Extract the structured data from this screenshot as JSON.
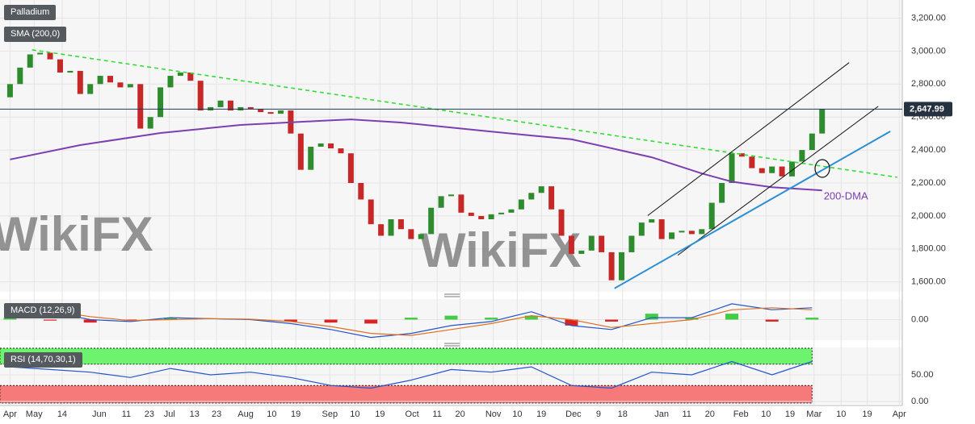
{
  "watermark": "WikiFX",
  "chart_data": [
    {
      "type": "candlestick",
      "title": "Palladium",
      "indicator": "SMA (200,0)",
      "annotation": "200-DMA",
      "up_color": "#2e8b2e",
      "down_color": "#c62828",
      "sma_color": "#7b3fb0",
      "xlim": [
        -1,
        89
      ],
      "xticks": [
        {
          "value": 0,
          "label": "Apr"
        },
        {
          "value": 2.4,
          "label": "May"
        },
        {
          "value": 5.2,
          "label": "14"
        },
        {
          "value": 8.9,
          "label": "Jun"
        },
        {
          "value": 11.6,
          "label": "11"
        },
        {
          "value": 13.9,
          "label": "23"
        },
        {
          "value": 15.9,
          "label": "Jul"
        },
        {
          "value": 18.4,
          "label": "13"
        },
        {
          "value": 20.6,
          "label": "23"
        },
        {
          "value": 23.5,
          "label": "Aug"
        },
        {
          "value": 26.1,
          "label": "10"
        },
        {
          "value": 28.5,
          "label": "19"
        },
        {
          "value": 31.9,
          "label": "Sep"
        },
        {
          "value": 34.4,
          "label": "10"
        },
        {
          "value": 36.9,
          "label": "19"
        },
        {
          "value": 40.1,
          "label": "Oct"
        },
        {
          "value": 42.6,
          "label": "11"
        },
        {
          "value": 44.9,
          "label": "20"
        },
        {
          "value": 48.2,
          "label": "Nov"
        },
        {
          "value": 50.6,
          "label": "10"
        },
        {
          "value": 53.0,
          "label": "19"
        },
        {
          "value": 56.2,
          "label": "Dec"
        },
        {
          "value": 58.7,
          "label": "9"
        },
        {
          "value": 61.1,
          "label": "18"
        },
        {
          "value": 65.0,
          "label": "Jan"
        },
        {
          "value": 67.5,
          "label": "11"
        },
        {
          "value": 69.8,
          "label": "20"
        },
        {
          "value": 72.9,
          "label": "Feb"
        },
        {
          "value": 75.4,
          "label": "10"
        },
        {
          "value": 77.8,
          "label": "19"
        },
        {
          "value": 80.2,
          "label": "Mar"
        },
        {
          "value": 82.9,
          "label": "10"
        },
        {
          "value": 85.5,
          "label": "19"
        },
        {
          "value": 88.7,
          "label": "Apr"
        }
      ],
      "ylim": [
        1540,
        3310
      ],
      "yticks": [
        {
          "value": 1600,
          "label": "1,600.00"
        },
        {
          "value": 1800,
          "label": "1,800.00"
        },
        {
          "value": 2000,
          "label": "2,000.00"
        },
        {
          "value": 2200,
          "label": "2,200.00"
        },
        {
          "value": 2400,
          "label": "2,400.00"
        },
        {
          "value": 2600,
          "label": "2,600.00"
        },
        {
          "value": 2800,
          "label": "2,800.00"
        },
        {
          "value": 3000,
          "label": "3,000.00"
        },
        {
          "value": 3200,
          "label": "3,200.00"
        }
      ],
      "last_price": {
        "value": 2647.99,
        "label": "2,647.99"
      },
      "open": [
        2720,
        2800,
        2900,
        2980,
        2990,
        2950,
        2870,
        2880,
        2740,
        2800,
        2850,
        2810,
        2780,
        2800,
        2530,
        2600,
        2780,
        2850,
        2870,
        2820,
        2640,
        2660,
        2700,
        2640,
        2660,
        2650,
        2630,
        2620,
        2640,
        2500,
        2280,
        2420,
        2440,
        2410,
        2380,
        2200,
        2100,
        1950,
        1880,
        1980,
        1920,
        1860,
        1890,
        2050,
        2120,
        2130,
        2020,
        2000,
        1980,
        2010,
        2020,
        2040,
        2100,
        2140,
        2180,
        2040,
        1880,
        1770,
        1790,
        1880,
        1780,
        1610,
        1780,
        1880,
        1960,
        1980,
        1860,
        1900,
        1910,
        1890,
        1920,
        2080,
        2200,
        2380,
        2360,
        2290,
        2260,
        2300,
        2240,
        2330,
        2400,
        2500
      ],
      "close": [
        2800,
        2900,
        2980,
        2990,
        2950,
        2870,
        2880,
        2740,
        2800,
        2850,
        2810,
        2780,
        2800,
        2530,
        2600,
        2780,
        2850,
        2870,
        2820,
        2640,
        2660,
        2700,
        2640,
        2660,
        2650,
        2630,
        2620,
        2640,
        2500,
        2280,
        2420,
        2440,
        2410,
        2380,
        2200,
        2100,
        1950,
        1880,
        1980,
        1920,
        1860,
        1890,
        2050,
        2120,
        2130,
        2020,
        2000,
        1980,
        2010,
        2020,
        2040,
        2100,
        2140,
        2180,
        2040,
        1880,
        1770,
        1790,
        1880,
        1780,
        1610,
        1780,
        1880,
        1960,
        1980,
        1860,
        1900,
        1910,
        1890,
        1920,
        2080,
        2200,
        2380,
        2360,
        2290,
        2260,
        2300,
        2240,
        2330,
        2400,
        2500,
        2647.99
      ],
      "sma": {
        "x": [
          0,
          7,
          15,
          23,
          31,
          34,
          39,
          47,
          52,
          56,
          64,
          69,
          72,
          76,
          81
        ],
        "values": [
          2343,
          2430,
          2503,
          2552,
          2577,
          2586,
          2567,
          2518,
          2488,
          2465,
          2356,
          2258,
          2208,
          2174,
          2155
        ]
      },
      "trendlines": [
        {
          "color": "#33dd33",
          "dashed": true,
          "x": [
            2.2,
            88.5
          ],
          "values": [
            3008,
            2235
          ]
        },
        {
          "color": "#111111",
          "dashed": false,
          "x": [
            63.6,
            83.7
          ],
          "values": [
            2002,
            2930
          ]
        },
        {
          "color": "#111111",
          "dashed": false,
          "x": [
            66.6,
            86.6
          ],
          "values": [
            1762,
            2665
          ]
        },
        {
          "color": "#2a8fd6",
          "dashed": false,
          "x": [
            60.3,
            87.8
          ],
          "values": [
            1561,
            2513
          ]
        }
      ]
    },
    {
      "type": "macd",
      "title": "MACD (12,26,9)",
      "ylim": [
        -100,
        100
      ],
      "yticks": [
        {
          "value": 0,
          "label": "0.00"
        }
      ],
      "x": [
        0,
        4,
        8,
        12,
        16,
        20,
        24,
        28,
        32,
        36,
        40,
        44,
        48,
        52,
        56,
        60,
        64,
        68,
        72,
        76,
        80
      ],
      "series": [
        {
          "name": "MACD",
          "color": "#2255cc",
          "values": [
            60,
            40,
            0,
            -10,
            10,
            5,
            0,
            -20,
            -50,
            -90,
            -70,
            -30,
            -10,
            40,
            -30,
            -50,
            10,
            10,
            80,
            50,
            60
          ]
        },
        {
          "name": "Signal",
          "color": "#e07020",
          "values": [
            50,
            45,
            15,
            -5,
            0,
            5,
            2,
            -10,
            -35,
            -70,
            -80,
            -50,
            -20,
            20,
            0,
            -40,
            -20,
            0,
            50,
            60,
            50
          ]
        }
      ],
      "histogram": {
        "up_color": "#44cc44",
        "down_color": "#dd2222",
        "values": [
          10,
          -5,
          -15,
          -5,
          10,
          0,
          -2,
          -10,
          -15,
          -20,
          10,
          20,
          10,
          20,
          -30,
          -10,
          30,
          10,
          30,
          -10,
          10
        ]
      }
    },
    {
      "type": "rsi",
      "title": "RSI (14,70,30,1)",
      "ylim": [
        -3,
        100
      ],
      "yticks": [
        {
          "value": 0,
          "label": "0.00"
        },
        {
          "value": 50,
          "label": "50.00"
        }
      ],
      "overbought": 70,
      "oversold": 30,
      "color": "#2255cc",
      "x": [
        0,
        4,
        8,
        12,
        16,
        20,
        24,
        28,
        32,
        36,
        40,
        44,
        48,
        52,
        56,
        60,
        64,
        68,
        72,
        76,
        80
      ],
      "values": [
        65,
        60,
        55,
        45,
        62,
        50,
        55,
        45,
        30,
        25,
        40,
        60,
        55,
        65,
        30,
        25,
        55,
        50,
        75,
        50,
        75
      ]
    }
  ]
}
